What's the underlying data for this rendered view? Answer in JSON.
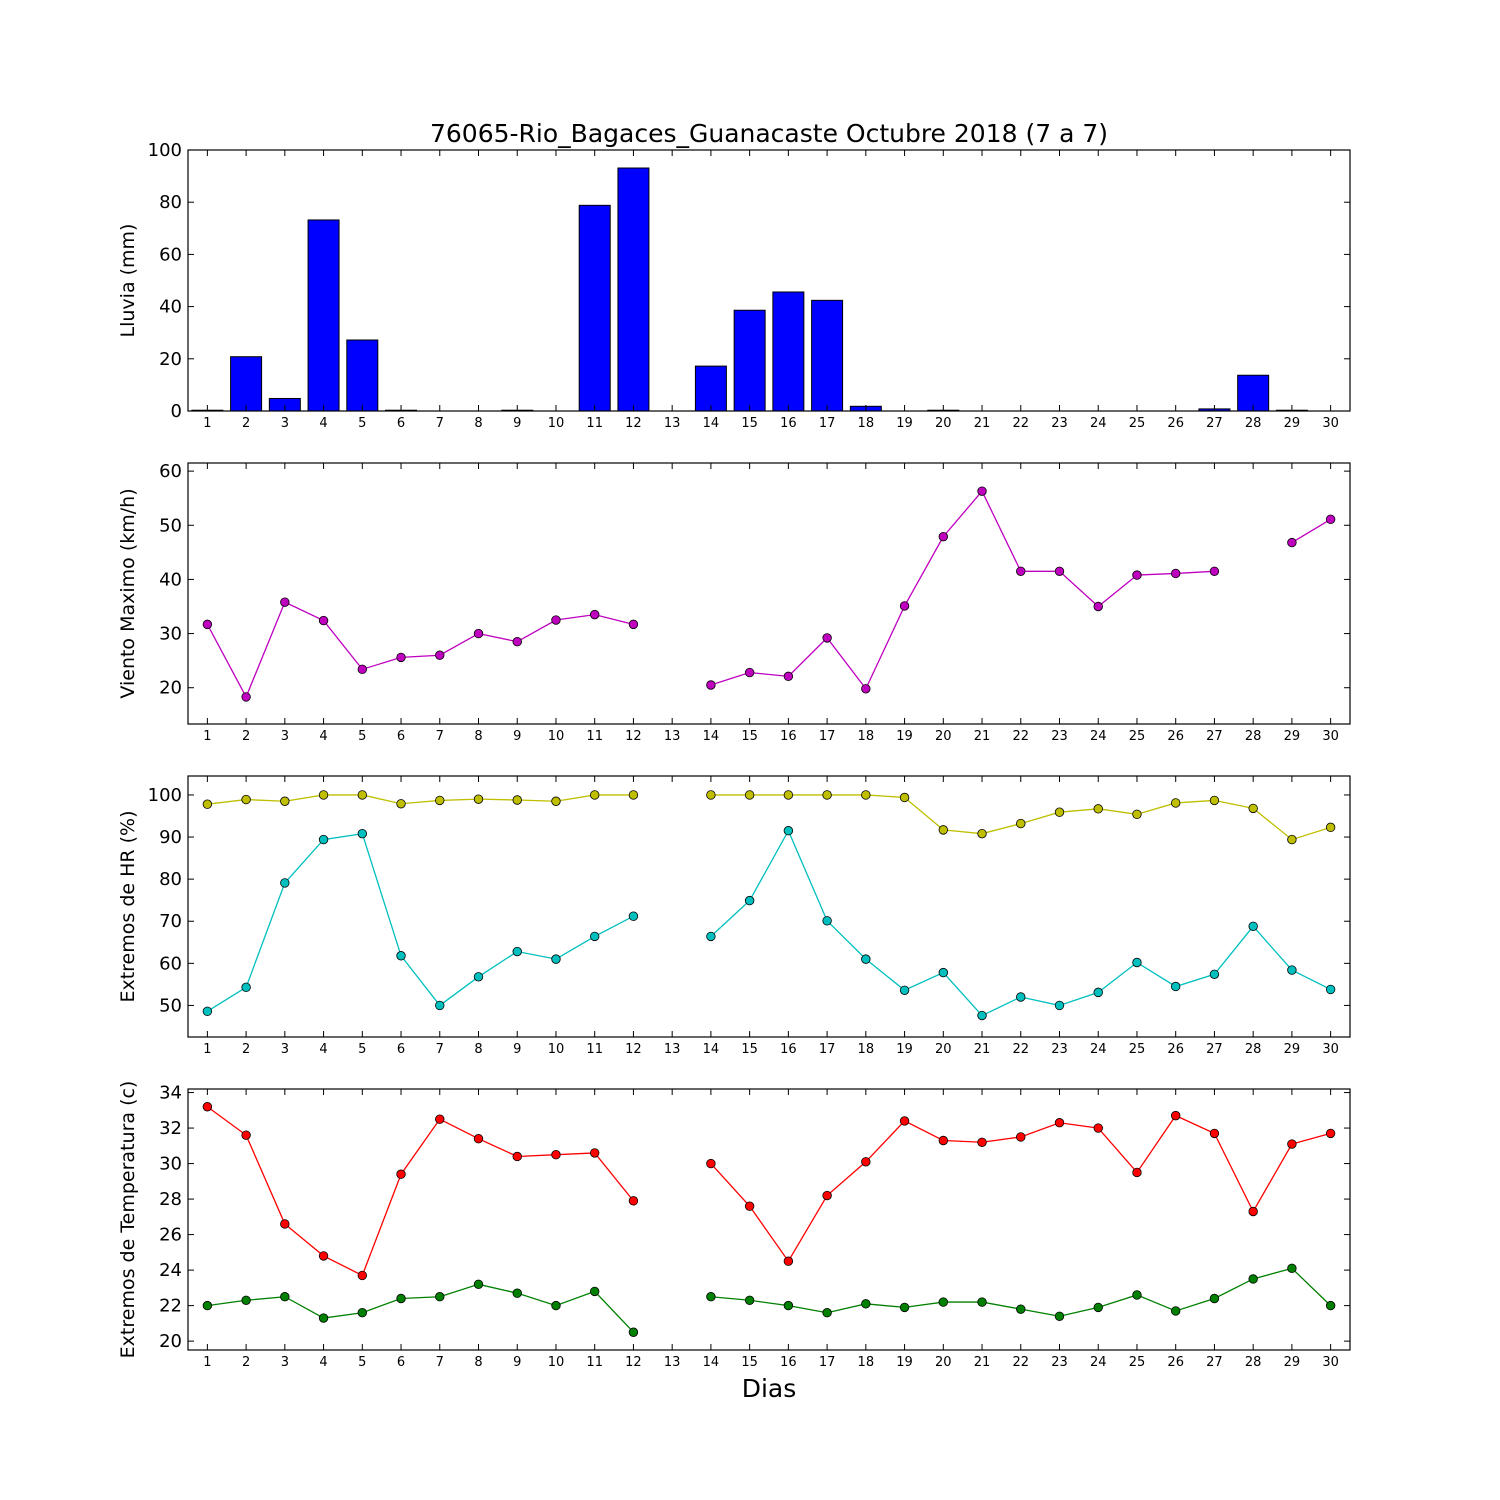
{
  "figure": {
    "title": "76065-Rio_Bagaces_Guanacaste Octubre 2018  (7 a 7)",
    "xlabel": "Dias"
  },
  "chart_data": [
    {
      "id": "rain",
      "type": "bar",
      "ylabel": "Lluvia (mm)",
      "ylim": [
        0,
        100
      ],
      "yticks": [
        0,
        20,
        40,
        60,
        80,
        100
      ],
      "xlim": [
        0.5,
        30.5
      ],
      "x": [
        1,
        2,
        3,
        4,
        5,
        6,
        7,
        8,
        9,
        10,
        11,
        12,
        13,
        14,
        15,
        16,
        17,
        18,
        19,
        20,
        21,
        22,
        23,
        24,
        25,
        26,
        27,
        28,
        29,
        30
      ],
      "series": [
        {
          "color": "#0000ff",
          "values": [
            0.3,
            20.8,
            4.8,
            73.2,
            27.2,
            0.3,
            0,
            0,
            0.3,
            0,
            78.8,
            93.1,
            0,
            17.2,
            38.6,
            45.6,
            42.4,
            1.8,
            0,
            0.3,
            0,
            0,
            0,
            0,
            0,
            0,
            0.8,
            13.7,
            0.3,
            0
          ]
        }
      ]
    },
    {
      "id": "wind",
      "type": "line",
      "ylabel": "Viento Maximo (km/h)",
      "ylim": [
        13.3,
        61.5
      ],
      "yticks": [
        20,
        30,
        40,
        50,
        60
      ],
      "xlim": [
        0.5,
        30.5
      ],
      "x": [
        1,
        2,
        3,
        4,
        5,
        6,
        7,
        8,
        9,
        10,
        11,
        12,
        13,
        14,
        15,
        16,
        17,
        18,
        19,
        20,
        21,
        22,
        23,
        24,
        25,
        26,
        27,
        28,
        29,
        30
      ],
      "series": [
        {
          "color": "#bf00bf",
          "values": [
            31.7,
            18.3,
            35.8,
            32.4,
            23.4,
            25.6,
            26.0,
            30.0,
            28.5,
            32.5,
            33.5,
            31.7,
            null,
            20.5,
            22.8,
            22.1,
            29.2,
            19.8,
            35.1,
            47.9,
            56.3,
            41.5,
            41.5,
            35.0,
            40.8,
            41.1,
            41.5,
            null,
            46.8,
            51.1
          ]
        }
      ]
    },
    {
      "id": "hr",
      "type": "line",
      "ylabel": "Extremos de HR (%)",
      "ylim": [
        42.5,
        104.5
      ],
      "yticks": [
        50,
        60,
        70,
        80,
        90,
        100
      ],
      "xlim": [
        0.5,
        30.5
      ],
      "x": [
        1,
        2,
        3,
        4,
        5,
        6,
        7,
        8,
        9,
        10,
        11,
        12,
        13,
        14,
        15,
        16,
        17,
        18,
        19,
        20,
        21,
        22,
        23,
        24,
        25,
        26,
        27,
        28,
        29,
        30
      ],
      "series": [
        {
          "color": "#bfbf00",
          "values": [
            97.8,
            98.9,
            98.5,
            100,
            100,
            97.9,
            98.7,
            99.0,
            98.8,
            98.5,
            100,
            100,
            null,
            100,
            100,
            100,
            100,
            100,
            99.4,
            91.7,
            90.8,
            93.2,
            95.9,
            96.7,
            95.4,
            98.1,
            98.7,
            96.8,
            89.4,
            92.3
          ]
        },
        {
          "color": "#00bfbf",
          "values": [
            48.6,
            54.3,
            79.1,
            89.4,
            90.8,
            61.8,
            50.0,
            56.8,
            62.8,
            61.0,
            66.4,
            71.2,
            null,
            66.4,
            74.9,
            91.5,
            70.1,
            61.0,
            53.6,
            57.8,
            47.6,
            52.0,
            50.0,
            53.1,
            60.2,
            54.5,
            57.4,
            68.8,
            58.4,
            53.8
          ]
        }
      ]
    },
    {
      "id": "temp",
      "type": "line",
      "ylabel": "Extremos de Temperatura (c)",
      "ylim": [
        19.5,
        34.2
      ],
      "yticks": [
        20,
        22,
        24,
        26,
        28,
        30,
        32,
        34
      ],
      "xlim": [
        0.5,
        30.5
      ],
      "x": [
        1,
        2,
        3,
        4,
        5,
        6,
        7,
        8,
        9,
        10,
        11,
        12,
        13,
        14,
        15,
        16,
        17,
        18,
        19,
        20,
        21,
        22,
        23,
        24,
        25,
        26,
        27,
        28,
        29,
        30
      ],
      "series": [
        {
          "color": "#ff0000",
          "values": [
            33.2,
            31.6,
            26.6,
            24.8,
            23.7,
            29.4,
            32.5,
            31.4,
            30.4,
            30.5,
            30.6,
            27.9,
            null,
            30.0,
            27.6,
            24.5,
            28.2,
            30.1,
            32.4,
            31.3,
            31.2,
            31.5,
            32.3,
            32.0,
            29.5,
            32.7,
            31.7,
            27.3,
            31.1,
            31.7
          ]
        },
        {
          "color": "#008000",
          "values": [
            22.0,
            22.3,
            22.5,
            21.3,
            21.6,
            22.4,
            22.5,
            23.2,
            22.7,
            22.0,
            22.8,
            20.5,
            null,
            22.5,
            22.3,
            22.0,
            21.6,
            22.1,
            21.9,
            22.2,
            22.2,
            21.8,
            21.4,
            21.9,
            22.6,
            21.7,
            22.4,
            23.5,
            24.1,
            22.0
          ]
        }
      ]
    }
  ]
}
